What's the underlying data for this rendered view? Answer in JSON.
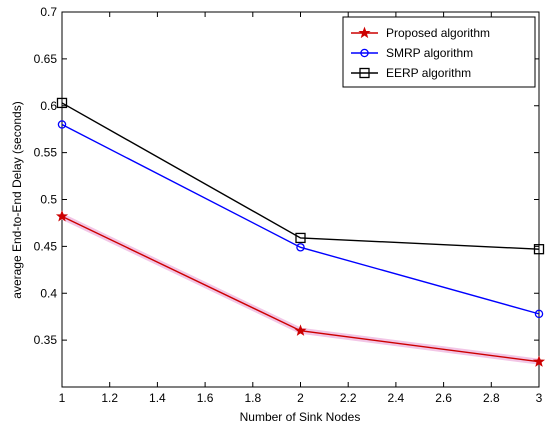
{
  "chart_data": {
    "type": "line",
    "title": "",
    "xlabel": "Number of Sink Nodes",
    "ylabel": "average End-to-End Delay (seconds)",
    "xlim": [
      1,
      3
    ],
    "ylim": [
      0.3,
      0.7
    ],
    "x_ticks": [
      "1",
      "1.2",
      "1.4",
      "1.6",
      "1.8",
      "2",
      "2.2",
      "2.4",
      "2.6",
      "2.8",
      "3"
    ],
    "y_ticks": [
      "0.35",
      "0.4",
      "0.45",
      "0.5",
      "0.55",
      "0.6",
      "0.65",
      "0.7"
    ],
    "x": [
      1,
      2,
      3
    ],
    "series": [
      {
        "name": "Proposed algorithm",
        "values": [
          0.482,
          0.36,
          0.327
        ],
        "color": "#cc0000",
        "marker": "star"
      },
      {
        "name": "SMRP algorithm",
        "values": [
          0.58,
          0.449,
          0.378
        ],
        "color": "#0000ff",
        "marker": "circle"
      },
      {
        "name": "EERP algorithm",
        "values": [
          0.603,
          0.459,
          0.447
        ],
        "color": "#000000",
        "marker": "square"
      }
    ],
    "legend_position": "top-right",
    "grid": false
  }
}
